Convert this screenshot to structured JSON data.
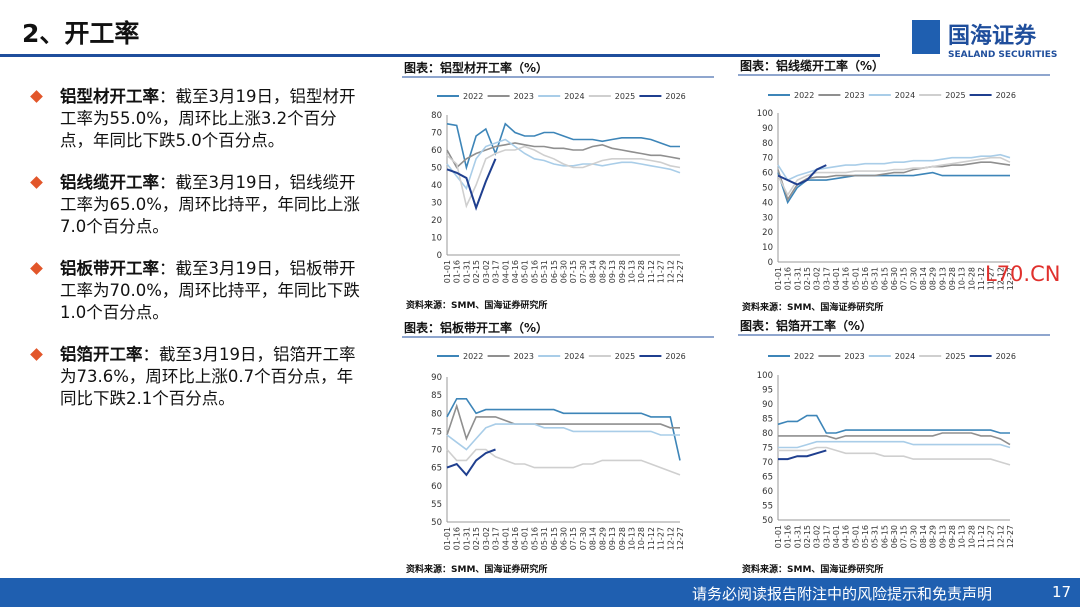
{
  "header": {
    "title": "2、开工率",
    "logo": "国海证券",
    "logo_en": "SEALAND SECURITIES"
  },
  "bullets": [
    {
      "lead": "铝型材开工率",
      "text": "：截至3月19日，铝型材开工率为55.0%，周环比上涨3.2个百分点，年同比下跌5.0个百分点。"
    },
    {
      "lead": "铝线缆开工率",
      "text": "：截至3月19日，铝线缆开工率为65.0%，周环比持平，年同比上涨7.0个百分点。"
    },
    {
      "lead": "铝板带开工率",
      "text": "：截至3月19日，铝板带开工率为70.0%，周环比持平，年同比下跌1.0个百分点。"
    },
    {
      "lead": "铝箔开工率",
      "text": "：截至3月19日，铝箔开工率为73.6%，周环比上涨0.7个百分点，年同比下跌2.1个百分点。"
    }
  ],
  "watermark": "L70.CN",
  "footer": {
    "text": "请务必阅读报告附注中的风险提示和免责声明",
    "page": "17"
  },
  "chart_data": [
    {
      "type": "line",
      "title": "图表：铝型材开工率（%）",
      "source": "资料来源：SMM、国海证券研究所",
      "categories": [
        "01-01",
        "01-16",
        "01-31",
        "02-15",
        "03-02",
        "03-17",
        "04-01",
        "04-16",
        "05-01",
        "05-16",
        "05-31",
        "06-15",
        "06-30",
        "07-15",
        "07-30",
        "08-14",
        "08-29",
        "09-13",
        "09-28",
        "10-13",
        "10-28",
        "11-12",
        "11-27",
        "12-12",
        "12-27"
      ],
      "ylim": [
        0,
        80
      ],
      "yticks": [
        0,
        10,
        20,
        30,
        40,
        50,
        60,
        70,
        80
      ],
      "series": [
        {
          "name": "2022",
          "color": "#3d85b8",
          "values": [
            75,
            74,
            50,
            68,
            72,
            58,
            75,
            70,
            68,
            68,
            70,
            70,
            68,
            66,
            66,
            66,
            65,
            66,
            67,
            67,
            67,
            66,
            64,
            62,
            62
          ]
        },
        {
          "name": "2023",
          "color": "#8f8f8f",
          "values": [
            60,
            50,
            55,
            58,
            60,
            62,
            63,
            64,
            63,
            62,
            62,
            61,
            61,
            60,
            60,
            62,
            63,
            61,
            60,
            59,
            58,
            57,
            57,
            56,
            55
          ]
        },
        {
          "name": "2024",
          "color": "#a9cde8",
          "values": [
            52,
            45,
            38,
            55,
            62,
            64,
            66,
            62,
            58,
            55,
            54,
            52,
            51,
            51,
            52,
            52,
            51,
            52,
            53,
            53,
            52,
            51,
            50,
            49,
            47
          ]
        },
        {
          "name": "2025",
          "color": "#cfcfcf",
          "values": [
            57,
            52,
            28,
            40,
            55,
            58,
            60,
            60,
            62,
            60,
            57,
            55,
            52,
            50,
            50,
            52,
            54,
            55,
            55,
            55,
            55,
            54,
            53,
            51,
            50
          ]
        },
        {
          "name": "2026",
          "color": "#1f3f8f",
          "values": [
            49,
            47,
            44,
            27,
            42,
            55,
            null,
            null,
            null,
            null,
            null,
            null,
            null,
            null,
            null,
            null,
            null,
            null,
            null,
            null,
            null,
            null,
            null,
            null,
            null
          ]
        }
      ]
    },
    {
      "type": "line",
      "title": "图表：铝线缆开工率（%）",
      "source": "资料来源：SMM、国海证券研究所",
      "categories": [
        "01-01",
        "01-16",
        "01-31",
        "02-15",
        "03-02",
        "03-17",
        "04-01",
        "04-16",
        "05-01",
        "05-16",
        "05-31",
        "06-15",
        "06-30",
        "07-15",
        "07-30",
        "08-14",
        "08-29",
        "09-13",
        "09-28",
        "10-13",
        "10-28",
        "11-12",
        "11-27",
        "12-12",
        "12-27"
      ],
      "ylim": [
        0,
        100
      ],
      "yticks": [
        0,
        10,
        20,
        30,
        40,
        50,
        60,
        70,
        80,
        90,
        100
      ],
      "series": [
        {
          "name": "2022",
          "color": "#3d85b8",
          "values": [
            60,
            40,
            50,
            55,
            55,
            55,
            56,
            57,
            58,
            58,
            58,
            58,
            58,
            58,
            58,
            59,
            60,
            58,
            58,
            58,
            58,
            58,
            58,
            58,
            58
          ]
        },
        {
          "name": "2023",
          "color": "#8f8f8f",
          "values": [
            62,
            42,
            52,
            56,
            57,
            57,
            58,
            58,
            58,
            58,
            58,
            59,
            60,
            60,
            62,
            63,
            64,
            64,
            65,
            65,
            66,
            67,
            67,
            66,
            65
          ]
        },
        {
          "name": "2024",
          "color": "#a9cde8",
          "values": [
            65,
            55,
            58,
            60,
            62,
            63,
            64,
            65,
            65,
            66,
            66,
            66,
            67,
            67,
            68,
            68,
            68,
            69,
            70,
            70,
            70,
            71,
            71,
            72,
            70
          ]
        },
        {
          "name": "2025",
          "color": "#cfcfcf",
          "values": [
            58,
            45,
            55,
            58,
            60,
            60,
            60,
            60,
            61,
            61,
            61,
            61,
            62,
            62,
            63,
            63,
            64,
            65,
            66,
            67,
            68,
            69,
            70,
            70,
            67
          ]
        },
        {
          "name": "2026",
          "color": "#1f3f8f",
          "values": [
            58,
            55,
            52,
            55,
            62,
            65,
            null,
            null,
            null,
            null,
            null,
            null,
            null,
            null,
            null,
            null,
            null,
            null,
            null,
            null,
            null,
            null,
            null,
            null,
            null
          ]
        }
      ]
    },
    {
      "type": "line",
      "title": "图表：铝板带开工率（%）",
      "source": "资料来源：SMM、国海证券研究所",
      "categories": [
        "01-01",
        "01-16",
        "01-31",
        "02-15",
        "03-02",
        "03-17",
        "04-01",
        "04-16",
        "05-01",
        "05-16",
        "05-31",
        "06-15",
        "06-30",
        "07-15",
        "07-30",
        "08-14",
        "08-29",
        "09-13",
        "09-28",
        "10-13",
        "10-28",
        "11-12",
        "11-27",
        "12-12",
        "12-27"
      ],
      "ylim": [
        50,
        90
      ],
      "yticks": [
        50,
        55,
        60,
        65,
        70,
        75,
        80,
        85,
        90
      ],
      "series": [
        {
          "name": "2022",
          "color": "#3d85b8",
          "values": [
            79,
            84,
            84,
            80,
            81,
            81,
            81,
            81,
            81,
            81,
            81,
            81,
            80,
            80,
            80,
            80,
            80,
            80,
            80,
            80,
            80,
            79,
            79,
            79,
            67
          ]
        },
        {
          "name": "2023",
          "color": "#8f8f8f",
          "values": [
            74,
            82,
            73,
            79,
            79,
            79,
            78,
            77,
            77,
            77,
            77,
            77,
            77,
            77,
            77,
            77,
            77,
            77,
            77,
            77,
            77,
            77,
            77,
            76,
            76
          ]
        },
        {
          "name": "2024",
          "color": "#a9cde8",
          "values": [
            74,
            72,
            70,
            73,
            76,
            77,
            77,
            77,
            77,
            77,
            76,
            76,
            76,
            75,
            75,
            75,
            75,
            75,
            75,
            75,
            75,
            75,
            74,
            74,
            74
          ]
        },
        {
          "name": "2025",
          "color": "#cfcfcf",
          "values": [
            70,
            67,
            67,
            70,
            70,
            68,
            67,
            66,
            66,
            65,
            65,
            65,
            65,
            65,
            66,
            66,
            67,
            67,
            67,
            67,
            67,
            66,
            65,
            64,
            63
          ]
        },
        {
          "name": "2026",
          "color": "#1f3f8f",
          "values": [
            65,
            66,
            63,
            67,
            69,
            70,
            null,
            null,
            null,
            null,
            null,
            null,
            null,
            null,
            null,
            null,
            null,
            null,
            null,
            null,
            null,
            null,
            null,
            null,
            null
          ]
        }
      ]
    },
    {
      "type": "line",
      "title": "图表：铝箔开工率（%）",
      "source": "资料来源：SMM、国海证券研究所",
      "categories": [
        "01-01",
        "01-16",
        "01-31",
        "02-15",
        "03-02",
        "03-17",
        "04-01",
        "04-16",
        "05-01",
        "05-16",
        "05-31",
        "06-15",
        "06-30",
        "07-15",
        "07-30",
        "08-14",
        "08-29",
        "09-13",
        "09-28",
        "10-13",
        "10-28",
        "11-12",
        "11-27",
        "12-12",
        "12-27"
      ],
      "ylim": [
        50,
        100
      ],
      "yticks": [
        50,
        55,
        60,
        65,
        70,
        75,
        80,
        85,
        90,
        95,
        100
      ],
      "series": [
        {
          "name": "2022",
          "color": "#3d85b8",
          "values": [
            83,
            84,
            84,
            86,
            86,
            80,
            80,
            81,
            81,
            81,
            81,
            81,
            81,
            81,
            81,
            81,
            81,
            81,
            81,
            81,
            81,
            81,
            81,
            80,
            80
          ]
        },
        {
          "name": "2023",
          "color": "#8f8f8f",
          "values": [
            79,
            79,
            79,
            79,
            79,
            79,
            78,
            79,
            79,
            79,
            79,
            79,
            79,
            79,
            79,
            79,
            79,
            80,
            80,
            80,
            80,
            79,
            79,
            78,
            76
          ]
        },
        {
          "name": "2024",
          "color": "#a9cde8",
          "values": [
            75,
            75,
            75,
            76,
            77,
            77,
            77,
            77,
            77,
            77,
            77,
            77,
            77,
            77,
            76,
            76,
            76,
            76,
            76,
            76,
            76,
            76,
            76,
            76,
            75
          ]
        },
        {
          "name": "2025",
          "color": "#cfcfcf",
          "values": [
            74,
            74,
            74,
            74,
            75,
            75,
            74,
            73,
            73,
            73,
            73,
            72,
            72,
            72,
            71,
            71,
            71,
            71,
            71,
            71,
            71,
            71,
            71,
            70,
            69
          ]
        },
        {
          "name": "2026",
          "color": "#1f3f8f",
          "values": [
            71,
            71,
            72,
            72,
            73,
            74,
            null,
            null,
            null,
            null,
            null,
            null,
            null,
            null,
            null,
            null,
            null,
            null,
            null,
            null,
            null,
            null,
            null,
            null,
            null
          ]
        }
      ]
    }
  ]
}
